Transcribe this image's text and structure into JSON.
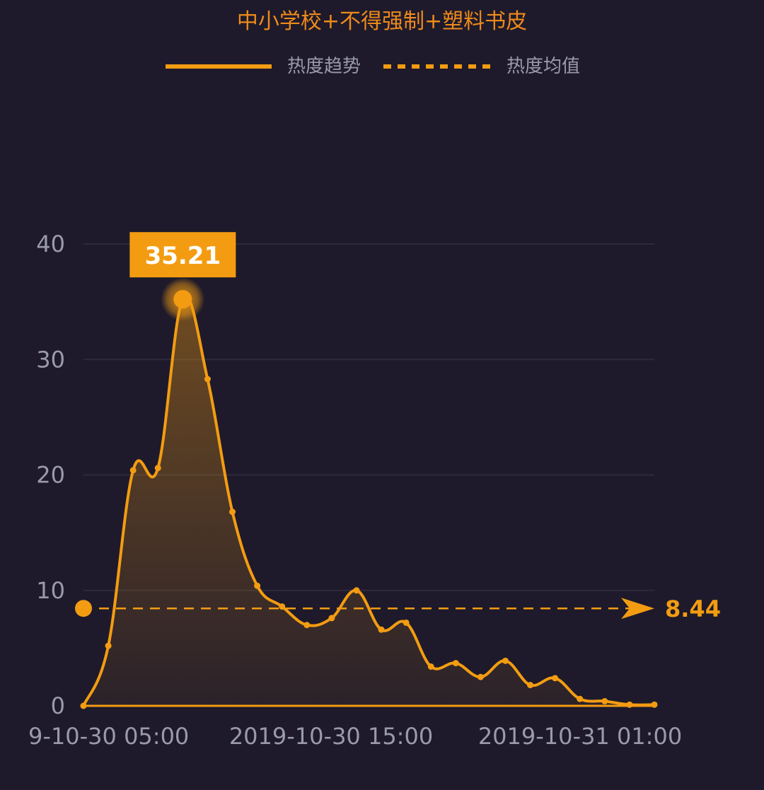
{
  "chart_data": {
    "type": "line",
    "title": "中小学校+不得强制+塑料书皮",
    "legend": {
      "placement": "top-center",
      "entries": [
        {
          "label": "热度趋势",
          "style": "solid"
        },
        {
          "label": "热度均值",
          "style": "dashed"
        }
      ]
    },
    "x_tick_labels": [
      "9-10-30 05:00",
      "2019-10-30 15:00",
      "2019-10-31 01:00"
    ],
    "y_ticks": [
      0,
      10,
      20,
      30,
      40
    ],
    "ylim": [
      0,
      40
    ],
    "grid": true,
    "series": [
      {
        "values": [
          0,
          5.2,
          20.4,
          20.6,
          35.21,
          28.3,
          16.8,
          10.4,
          8.6,
          7.0,
          7.6,
          10.0,
          6.6,
          7.2,
          3.4,
          3.7,
          2.5,
          3.9,
          1.8,
          2.4,
          0.6,
          0.4,
          0.1,
          0.1
        ]
      }
    ],
    "max_point": {
      "index": 4,
      "label": "35.21",
      "value": 35.21
    },
    "average": {
      "label": "8.44",
      "value": 8.44
    },
    "colors": {
      "background": "#1e1a2b",
      "line": "#f39c12",
      "title": "#ee8a1a",
      "axis_text": "#9a9aaa",
      "legend_text": "#9a9aaa",
      "grid": "#2d2a3c",
      "badge_text": "#ffffff"
    }
  }
}
